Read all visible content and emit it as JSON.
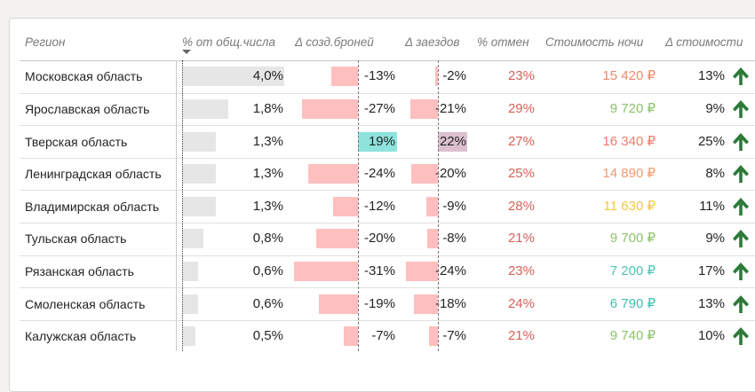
{
  "headers": {
    "region": "Регион",
    "share": "% от общ.числа",
    "d_created": "Δ созд.броней",
    "d_checkins": "Δ заездов",
    "cancel": "% отмен",
    "price": "Стоимость ночи",
    "d_cost": "Δ стоимости"
  },
  "colors": {
    "share_bar": "#e6e6e6",
    "negative_bar": "#ffbfbf",
    "positive_bar_created": "#8ee3dc",
    "positive_bar_checkins": "#dcc0cf",
    "cancel_text": "#d9605a",
    "arrow_up": "#2d7a3a"
  },
  "rows": [
    {
      "region": "Московская область",
      "share": "4,0%",
      "share_value": 4.0,
      "d_created": "-13%",
      "d_created_value": -13,
      "d_checkins": "-2%",
      "d_checkins_value": -2,
      "cancel": "23%",
      "price": "15 420 ₽",
      "price_color": "#f08a6b",
      "d_cost": "13%",
      "d_cost_icon": "arrow-up-icon"
    },
    {
      "region": "Ярославская область",
      "share": "1,8%",
      "share_value": 1.8,
      "d_created": "-27%",
      "d_created_value": -27,
      "d_checkins": "-21%",
      "d_checkins_value": -21,
      "cancel": "29%",
      "price": "9 720 ₽",
      "price_color": "#8cc36a",
      "d_cost": "9%",
      "d_cost_icon": "arrow-up-icon"
    },
    {
      "region": "Тверская область",
      "share": "1,3%",
      "share_value": 1.3,
      "d_created": "19%",
      "d_created_value": 19,
      "d_checkins": "22%",
      "d_checkins_value": 22,
      "cancel": "27%",
      "price": "16 340 ₽",
      "price_color": "#f07a6a",
      "d_cost": "25%",
      "d_cost_icon": "arrow-up-icon"
    },
    {
      "region": "Ленинградская область",
      "share": "1,3%",
      "share_value": 1.3,
      "d_created": "-24%",
      "d_created_value": -24,
      "d_checkins": "-20%",
      "d_checkins_value": -20,
      "cancel": "25%",
      "price": "14 890 ₽",
      "price_color": "#f39a6d",
      "d_cost": "8%",
      "d_cost_icon": "arrow-up-icon"
    },
    {
      "region": "Владимирская область",
      "share": "1,3%",
      "share_value": 1.3,
      "d_created": "-12%",
      "d_created_value": -12,
      "d_checkins": "-9%",
      "d_checkins_value": -9,
      "cancel": "28%",
      "price": "11 630 ₽",
      "price_color": "#f2c744",
      "d_cost": "11%",
      "d_cost_icon": "arrow-up-icon"
    },
    {
      "region": "Тульская область",
      "share": "0,8%",
      "share_value": 0.8,
      "d_created": "-20%",
      "d_created_value": -20,
      "d_checkins": "-8%",
      "d_checkins_value": -8,
      "cancel": "21%",
      "price": "9 700 ₽",
      "price_color": "#8cc36a",
      "d_cost": "9%",
      "d_cost_icon": "arrow-up-icon"
    },
    {
      "region": "Рязанская область",
      "share": "0,6%",
      "share_value": 0.6,
      "d_created": "-31%",
      "d_created_value": -31,
      "d_checkins": "-24%",
      "d_checkins_value": -24,
      "cancel": "23%",
      "price": "7 200 ₽",
      "price_color": "#4fc4b5",
      "d_cost": "17%",
      "d_cost_icon": "arrow-up-icon"
    },
    {
      "region": "Смоленская область",
      "share": "0,6%",
      "share_value": 0.6,
      "d_created": "-19%",
      "d_created_value": -19,
      "d_checkins": "-18%",
      "d_checkins_value": -18,
      "cancel": "24%",
      "price": "6 790 ₽",
      "price_color": "#3cbfb0",
      "d_cost": "13%",
      "d_cost_icon": "arrow-up-icon"
    },
    {
      "region": "Калужская область",
      "share": "0,5%",
      "share_value": 0.5,
      "d_created": "-7%",
      "d_created_value": -7,
      "d_checkins": "-7%",
      "d_checkins_value": -7,
      "cancel": "21%",
      "price": "9 740 ₽",
      "price_color": "#8cc36a",
      "d_cost": "10%",
      "d_cost_icon": "arrow-up-icon"
    }
  ]
}
